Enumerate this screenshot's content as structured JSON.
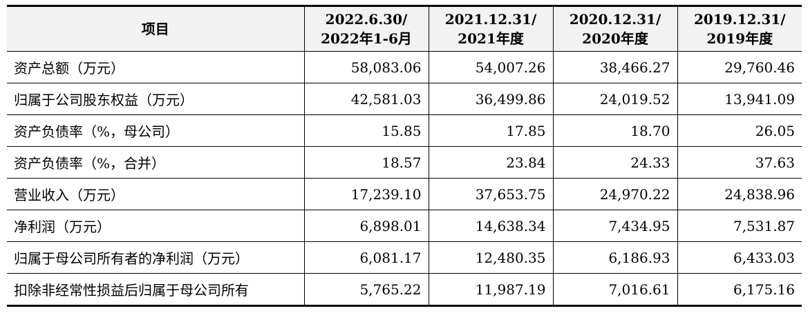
{
  "table": {
    "header": [
      "项目",
      [
        "2022.6.30/",
        "2022年1-6月"
      ],
      [
        "2021.12.31/",
        "2021年度"
      ],
      [
        "2020.12.31/",
        "2020年度"
      ],
      [
        "2019.12.31/",
        "2019年度"
      ]
    ],
    "rows": [
      [
        "资产总额（万元）",
        "58,083.06",
        "54,007.26",
        "38,466.27",
        "29,760.46"
      ],
      [
        "归属于公司股东权益（万元）",
        "42,581.03",
        "36,499.86",
        "24,019.52",
        "13,941.09"
      ],
      [
        "资产负债率（%，母公司）",
        "15.85",
        "17.85",
        "18.70",
        "26.05"
      ],
      [
        "资产负债率（%，合并）",
        "18.57",
        "23.84",
        "24.33",
        "37.63"
      ],
      [
        "营业收入（万元）",
        "17,239.10",
        "37,653.75",
        "24,970.22",
        "24,838.96"
      ],
      [
        "净利润（万元）",
        "6,898.01",
        "14,638.34",
        "7,434.95",
        "7,531.87"
      ],
      [
        "归属于母公司所有者的净利润（万元）",
        "6,081.17",
        "12,480.35",
        "6,186.93",
        "6,433.03"
      ],
      [
        "扣除非经常性损益后归属于母公司所有",
        "5,765.22",
        "11,987.19",
        "7,016.61",
        "6,175.16"
      ]
    ]
  }
}
